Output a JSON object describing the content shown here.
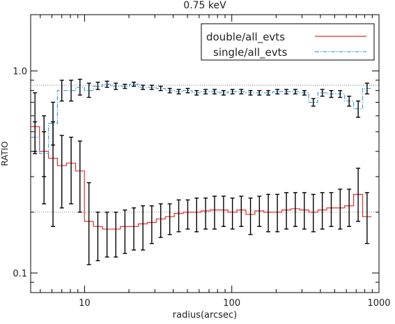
{
  "chart_data": {
    "type": "line",
    "title": "0.75 keV",
    "xlabel": "radius(arcsec)",
    "ylabel": "RATIO",
    "x_scale": "log",
    "y_scale": "log",
    "xlim": [
      4.3,
      1000
    ],
    "ylim": [
      0.08,
      1.9
    ],
    "x_ticks": [
      {
        "value": 10,
        "label": "10"
      },
      {
        "value": 100,
        "label": "100"
      },
      {
        "value": 1000,
        "label": "1000"
      }
    ],
    "y_ticks": [
      {
        "value": 0.1,
        "label": "0.1"
      },
      {
        "value": 1.0,
        "label": "1.0"
      }
    ],
    "reference_lines": [
      {
        "y": 0.85,
        "style": "dotted"
      },
      {
        "y": 0.2,
        "style": "dotted"
      }
    ],
    "legend_position": "top-right",
    "style": "step",
    "series": [
      {
        "name": "double/all_evts",
        "color": "#e8292a",
        "dash": "solid",
        "x": [
          4.6,
          5.3,
          6.1,
          7.0,
          8.1,
          9.3,
          10.7,
          12.3,
          14.2,
          16.3,
          18.8,
          21.6,
          24.9,
          28.6,
          32.9,
          37.9,
          43.6,
          50.2,
          57.7,
          66.4,
          76.4,
          87.9,
          101,
          116,
          134,
          154,
          177,
          204,
          235,
          270,
          311,
          358,
          412,
          474,
          545,
          627,
          722,
          830
        ],
        "values": [
          0.53,
          0.4,
          0.37,
          0.34,
          0.35,
          0.32,
          0.18,
          0.17,
          0.165,
          0.165,
          0.17,
          0.17,
          0.175,
          0.178,
          0.185,
          0.19,
          0.197,
          0.2,
          0.2,
          0.203,
          0.205,
          0.205,
          0.2,
          0.205,
          0.195,
          0.203,
          0.2,
          0.2,
          0.205,
          0.208,
          0.205,
          0.2,
          0.205,
          0.21,
          0.21,
          0.215,
          0.245,
          0.19
        ],
        "err_low": [
          0.4,
          0.22,
          0.17,
          0.21,
          0.22,
          0.2,
          0.11,
          0.115,
          0.12,
          0.12,
          0.125,
          0.13,
          0.13,
          0.14,
          0.15,
          0.155,
          0.16,
          0.165,
          0.16,
          0.165,
          0.165,
          0.17,
          0.165,
          0.17,
          0.155,
          0.17,
          0.16,
          0.16,
          0.165,
          0.17,
          0.165,
          0.16,
          0.165,
          0.17,
          0.165,
          0.17,
          0.18,
          0.14
        ],
        "err_high": [
          0.78,
          0.6,
          0.56,
          0.48,
          0.47,
          0.45,
          0.28,
          0.2,
          0.2,
          0.2,
          0.205,
          0.21,
          0.215,
          0.215,
          0.22,
          0.22,
          0.23,
          0.23,
          0.235,
          0.235,
          0.24,
          0.24,
          0.235,
          0.24,
          0.235,
          0.24,
          0.245,
          0.245,
          0.25,
          0.25,
          0.25,
          0.245,
          0.25,
          0.25,
          0.26,
          0.26,
          0.33,
          0.25
        ]
      },
      {
        "name": "single/all_evts",
        "color": "#3aa0e0",
        "dash": "dashdot",
        "x": [
          4.6,
          5.3,
          6.1,
          7.0,
          8.1,
          9.3,
          10.7,
          12.3,
          14.2,
          16.3,
          18.8,
          21.6,
          24.9,
          28.6,
          32.9,
          37.9,
          43.6,
          50.2,
          57.7,
          66.4,
          76.4,
          87.9,
          101,
          116,
          134,
          154,
          177,
          204,
          235,
          270,
          311,
          358,
          412,
          474,
          545,
          627,
          722,
          830
        ],
        "values": [
          0.47,
          0.39,
          0.55,
          0.8,
          0.8,
          0.83,
          0.8,
          0.84,
          0.86,
          0.84,
          0.84,
          0.86,
          0.83,
          0.83,
          0.82,
          0.8,
          0.79,
          0.8,
          0.78,
          0.79,
          0.79,
          0.78,
          0.79,
          0.79,
          0.78,
          0.78,
          0.78,
          0.79,
          0.79,
          0.79,
          0.78,
          0.7,
          0.78,
          0.77,
          0.77,
          0.71,
          0.65,
          0.82
        ],
        "err_low": [
          0.39,
          0.3,
          0.43,
          0.71,
          0.71,
          0.76,
          0.74,
          0.81,
          0.83,
          0.81,
          0.82,
          0.84,
          0.81,
          0.81,
          0.8,
          0.78,
          0.77,
          0.78,
          0.76,
          0.77,
          0.77,
          0.76,
          0.77,
          0.77,
          0.76,
          0.76,
          0.76,
          0.77,
          0.77,
          0.77,
          0.76,
          0.67,
          0.75,
          0.74,
          0.74,
          0.67,
          0.59,
          0.77
        ],
        "err_high": [
          0.56,
          0.5,
          0.7,
          0.9,
          0.9,
          0.91,
          0.87,
          0.88,
          0.89,
          0.87,
          0.86,
          0.88,
          0.85,
          0.85,
          0.84,
          0.82,
          0.81,
          0.82,
          0.8,
          0.81,
          0.81,
          0.8,
          0.81,
          0.81,
          0.8,
          0.8,
          0.8,
          0.81,
          0.81,
          0.81,
          0.8,
          0.73,
          0.81,
          0.8,
          0.8,
          0.75,
          0.71,
          0.87
        ]
      }
    ]
  }
}
